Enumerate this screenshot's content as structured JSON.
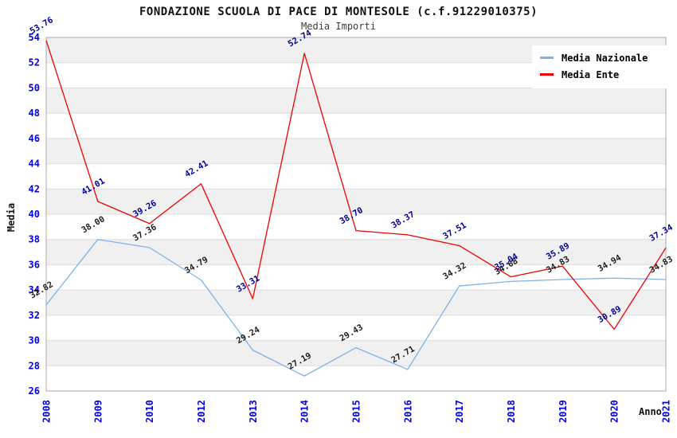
{
  "chart_data": {
    "type": "line",
    "title": "FONDAZIONE SCUOLA DI PACE DI MONTESOLE (c.f.91229010375)",
    "subtitle": "Media Importi",
    "xlabel": "Anno",
    "ylabel": "Media",
    "ylim": [
      26,
      54
    ],
    "ytick_step": 2,
    "grid": "horizontal-bands",
    "band_colors": [
      "#f0f0f0",
      "#ffffff"
    ],
    "gridline_color": "#dcdcdc",
    "border_color": "#a8a8a8",
    "axis_tick_label_color": "#0000e8",
    "legend_position": "top-right",
    "x": [
      "2008",
      "2009",
      "2010",
      "2012",
      "2013",
      "2014",
      "2015",
      "2016",
      "2017",
      "2018",
      "2019",
      "2020",
      "2021"
    ],
    "series": [
      {
        "name": "Media Nazionale",
        "color": "#7fb2e8",
        "label_color": "#1c1c1c",
        "values": [
          32.82,
          38.0,
          37.36,
          34.79,
          29.24,
          27.19,
          29.43,
          27.71,
          34.32,
          34.68,
          34.83,
          34.94,
          34.83
        ],
        "labels": [
          "32.82",
          "38.00",
          "37.36",
          "34.79",
          "29.24",
          "27.19",
          "29.43",
          "27.71",
          "34.32",
          "34.68",
          "34.83",
          "34.94",
          "34.83"
        ]
      },
      {
        "name": "Media Ente",
        "color": "#f00000",
        "label_color": "#000099",
        "values": [
          53.76,
          41.01,
          39.26,
          42.41,
          33.31,
          52.74,
          38.7,
          38.37,
          37.51,
          35.04,
          35.89,
          30.89,
          37.34
        ],
        "labels": [
          "53.76",
          "41.01",
          "39.26",
          "42.41",
          "33.31",
          "52.74",
          "38.70",
          "38.37",
          "37.51",
          "35.04",
          "35.89",
          "30.89",
          "37.34"
        ]
      }
    ],
    "y_ticks": [
      26,
      28,
      30,
      32,
      34,
      36,
      38,
      40,
      42,
      44,
      46,
      48,
      50,
      52,
      54
    ]
  }
}
